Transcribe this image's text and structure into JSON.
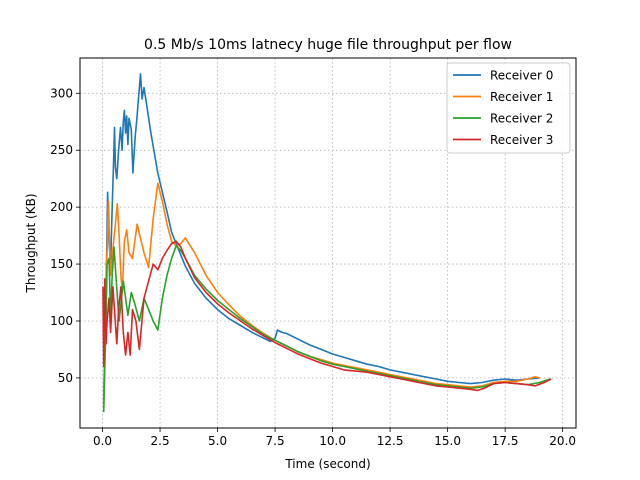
{
  "chart_data": {
    "type": "line",
    "title": "0.5 Mb/s 10ms latnecy huge file throughput per flow",
    "xlabel": "Time (second)",
    "ylabel": "Throughput (KB)",
    "xlim": [
      -0.98,
      20.58
    ],
    "ylim": [
      6,
      331
    ],
    "xticks": [
      0,
      2.5,
      5,
      7.5,
      10,
      12.5,
      15,
      17.5,
      20
    ],
    "xtick_labels": [
      "0.0",
      "2.5",
      "5.0",
      "7.5",
      "10.0",
      "12.5",
      "15.0",
      "17.5",
      "20.0"
    ],
    "yticks": [
      50,
      100,
      150,
      200,
      250,
      300
    ],
    "ytick_labels": [
      "50",
      "100",
      "150",
      "200",
      "250",
      "300"
    ],
    "grid": true,
    "legend_position": "top-right",
    "series": [
      {
        "name": "Receiver 0",
        "color": "#1f77b4",
        "points": [
          [
            0.05,
            30
          ],
          [
            0.12,
            110
          ],
          [
            0.18,
            160
          ],
          [
            0.22,
            213
          ],
          [
            0.28,
            170
          ],
          [
            0.35,
            150
          ],
          [
            0.42,
            200
          ],
          [
            0.48,
            240
          ],
          [
            0.52,
            270
          ],
          [
            0.56,
            235
          ],
          [
            0.62,
            225
          ],
          [
            0.7,
            250
          ],
          [
            0.78,
            270
          ],
          [
            0.85,
            250
          ],
          [
            0.9,
            275
          ],
          [
            0.95,
            285
          ],
          [
            1.0,
            265
          ],
          [
            1.05,
            280
          ],
          [
            1.1,
            255
          ],
          [
            1.15,
            278
          ],
          [
            1.25,
            268
          ],
          [
            1.32,
            230
          ],
          [
            1.42,
            262
          ],
          [
            1.5,
            280
          ],
          [
            1.58,
            300
          ],
          [
            1.65,
            317
          ],
          [
            1.72,
            295
          ],
          [
            1.8,
            305
          ],
          [
            1.9,
            292
          ],
          [
            2.1,
            265
          ],
          [
            2.4,
            230
          ],
          [
            2.8,
            196
          ],
          [
            3.0,
            178
          ],
          [
            3.3,
            163
          ],
          [
            3.6,
            148
          ],
          [
            4.0,
            133
          ],
          [
            4.5,
            120
          ],
          [
            5.0,
            110
          ],
          [
            5.5,
            102
          ],
          [
            6.0,
            96
          ],
          [
            6.5,
            90
          ],
          [
            7.0,
            85
          ],
          [
            7.3,
            82
          ],
          [
            7.5,
            85
          ],
          [
            7.6,
            92
          ],
          [
            7.8,
            90
          ],
          [
            8.0,
            89
          ],
          [
            8.5,
            84
          ],
          [
            9.0,
            79
          ],
          [
            9.5,
            75
          ],
          [
            10.0,
            71
          ],
          [
            10.5,
            68
          ],
          [
            11.0,
            65
          ],
          [
            11.5,
            62
          ],
          [
            12.0,
            60
          ],
          [
            12.5,
            57
          ],
          [
            13.0,
            55
          ],
          [
            13.5,
            53
          ],
          [
            14.0,
            51
          ],
          [
            14.5,
            49
          ],
          [
            15.0,
            47
          ],
          [
            15.5,
            46
          ],
          [
            16.0,
            45
          ],
          [
            16.5,
            46
          ],
          [
            17.0,
            48
          ],
          [
            17.5,
            49
          ],
          [
            18.0,
            48
          ],
          [
            18.5,
            49
          ],
          [
            19.0,
            50
          ]
        ]
      },
      {
        "name": "Receiver 1",
        "color": "#ff7f0e",
        "points": [
          [
            0.05,
            25
          ],
          [
            0.1,
            90
          ],
          [
            0.18,
            150
          ],
          [
            0.26,
            205
          ],
          [
            0.34,
            140
          ],
          [
            0.4,
            150
          ],
          [
            0.48,
            170
          ],
          [
            0.56,
            185
          ],
          [
            0.64,
            203
          ],
          [
            0.72,
            175
          ],
          [
            0.8,
            140
          ],
          [
            0.86,
            125
          ],
          [
            0.95,
            170
          ],
          [
            1.05,
            180
          ],
          [
            1.15,
            160
          ],
          [
            1.3,
            155
          ],
          [
            1.5,
            185
          ],
          [
            1.8,
            160
          ],
          [
            2.0,
            147
          ],
          [
            2.2,
            190
          ],
          [
            2.4,
            221
          ],
          [
            2.6,
            205
          ],
          [
            2.8,
            185
          ],
          [
            3.0,
            170
          ],
          [
            3.2,
            166
          ],
          [
            3.4,
            168
          ],
          [
            3.6,
            173
          ],
          [
            4.0,
            160
          ],
          [
            4.5,
            140
          ],
          [
            5.0,
            125
          ],
          [
            5.5,
            114
          ],
          [
            6.0,
            104
          ],
          [
            6.5,
            96
          ],
          [
            7.0,
            89
          ],
          [
            7.5,
            83
          ],
          [
            8.0,
            78
          ],
          [
            8.5,
            73
          ],
          [
            9.0,
            69
          ],
          [
            9.5,
            66
          ],
          [
            10.0,
            63
          ],
          [
            10.5,
            61
          ],
          [
            11.0,
            59
          ],
          [
            11.5,
            57
          ],
          [
            12.0,
            55
          ],
          [
            12.5,
            53
          ],
          [
            13.0,
            51
          ],
          [
            13.5,
            49
          ],
          [
            14.0,
            47
          ],
          [
            14.5,
            45
          ],
          [
            15.0,
            44
          ],
          [
            15.5,
            43
          ],
          [
            16.0,
            42
          ],
          [
            16.5,
            43
          ],
          [
            17.0,
            46
          ],
          [
            17.5,
            47
          ],
          [
            18.0,
            47
          ],
          [
            18.5,
            49
          ],
          [
            18.8,
            51
          ],
          [
            19.0,
            50
          ]
        ]
      },
      {
        "name": "Receiver 2",
        "color": "#2ca02c",
        "points": [
          [
            0.05,
            20
          ],
          [
            0.1,
            60
          ],
          [
            0.15,
            100
          ],
          [
            0.2,
            150
          ],
          [
            0.28,
            155
          ],
          [
            0.35,
            105
          ],
          [
            0.42,
            140
          ],
          [
            0.5,
            165
          ],
          [
            0.58,
            140
          ],
          [
            0.65,
            120
          ],
          [
            0.72,
            100
          ],
          [
            0.8,
            115
          ],
          [
            0.9,
            135
          ],
          [
            1.0,
            120
          ],
          [
            1.1,
            105
          ],
          [
            1.25,
            125
          ],
          [
            1.4,
            115
          ],
          [
            1.6,
            100
          ],
          [
            1.8,
            120
          ],
          [
            2.0,
            110
          ],
          [
            2.2,
            100
          ],
          [
            2.4,
            92
          ],
          [
            2.6,
            120
          ],
          [
            2.8,
            140
          ],
          [
            3.0,
            155
          ],
          [
            3.2,
            166
          ],
          [
            3.4,
            162
          ],
          [
            3.6,
            155
          ],
          [
            4.0,
            140
          ],
          [
            4.5,
            128
          ],
          [
            5.0,
            118
          ],
          [
            5.5,
            110
          ],
          [
            6.0,
            102
          ],
          [
            6.5,
            95
          ],
          [
            7.0,
            88
          ],
          [
            7.5,
            83
          ],
          [
            8.0,
            78
          ],
          [
            8.5,
            73
          ],
          [
            9.0,
            69
          ],
          [
            9.5,
            65
          ],
          [
            10.0,
            62
          ],
          [
            10.5,
            60
          ],
          [
            11.0,
            58
          ],
          [
            11.5,
            56
          ],
          [
            12.0,
            54
          ],
          [
            12.5,
            52
          ],
          [
            13.0,
            50
          ],
          [
            13.5,
            48
          ],
          [
            14.0,
            46
          ],
          [
            14.5,
            44
          ],
          [
            15.0,
            43
          ],
          [
            15.5,
            42
          ],
          [
            16.0,
            41
          ],
          [
            16.5,
            42
          ],
          [
            17.0,
            45
          ],
          [
            17.5,
            46
          ],
          [
            18.0,
            45
          ],
          [
            18.5,
            44
          ],
          [
            19.0,
            46
          ],
          [
            19.3,
            48
          ],
          [
            19.5,
            49
          ]
        ]
      },
      {
        "name": "Receiver 3",
        "color": "#d62728",
        "points": [
          [
            0.02,
            130
          ],
          [
            0.05,
            60
          ],
          [
            0.1,
            137
          ],
          [
            0.15,
            80
          ],
          [
            0.2,
            100
          ],
          [
            0.28,
            120
          ],
          [
            0.35,
            90
          ],
          [
            0.45,
            130
          ],
          [
            0.55,
            100
          ],
          [
            0.62,
            80
          ],
          [
            0.7,
            110
          ],
          [
            0.8,
            130
          ],
          [
            0.9,
            90
          ],
          [
            1.0,
            70
          ],
          [
            1.1,
            90
          ],
          [
            1.2,
            70
          ],
          [
            1.3,
            110
          ],
          [
            1.45,
            100
          ],
          [
            1.6,
            75
          ],
          [
            1.8,
            120
          ],
          [
            2.0,
            135
          ],
          [
            2.2,
            150
          ],
          [
            2.4,
            145
          ],
          [
            2.6,
            155
          ],
          [
            2.8,
            162
          ],
          [
            3.0,
            168
          ],
          [
            3.2,
            170
          ],
          [
            3.4,
            165
          ],
          [
            3.6,
            155
          ],
          [
            4.0,
            138
          ],
          [
            4.5,
            125
          ],
          [
            5.0,
            115
          ],
          [
            5.5,
            107
          ],
          [
            6.0,
            100
          ],
          [
            6.5,
            93
          ],
          [
            7.0,
            87
          ],
          [
            7.5,
            81
          ],
          [
            8.0,
            76
          ],
          [
            8.5,
            71
          ],
          [
            9.0,
            67
          ],
          [
            9.5,
            63
          ],
          [
            10.0,
            60
          ],
          [
            10.5,
            57
          ],
          [
            11.0,
            56
          ],
          [
            11.5,
            55
          ],
          [
            12.0,
            53
          ],
          [
            12.5,
            51
          ],
          [
            13.0,
            49
          ],
          [
            13.5,
            47
          ],
          [
            14.0,
            45
          ],
          [
            14.5,
            43
          ],
          [
            15.0,
            42
          ],
          [
            15.5,
            41
          ],
          [
            16.0,
            40
          ],
          [
            16.3,
            39
          ],
          [
            16.6,
            41
          ],
          [
            17.0,
            45
          ],
          [
            17.5,
            46
          ],
          [
            18.0,
            45
          ],
          [
            18.5,
            44
          ],
          [
            18.8,
            43
          ],
          [
            19.2,
            46
          ],
          [
            19.5,
            49
          ]
        ]
      }
    ]
  }
}
